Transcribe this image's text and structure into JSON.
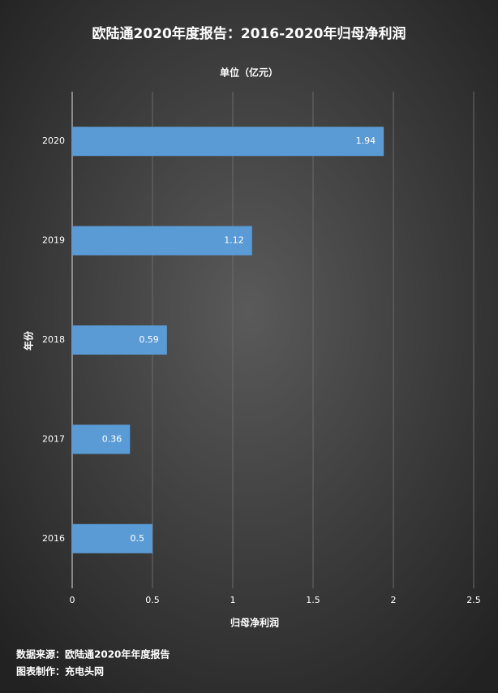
{
  "chart_data": {
    "type": "hbar",
    "title": "欧陆通2020年度报告：2016-2020年归母净利润",
    "subtitle": "单位（亿元）",
    "x_label": "归母净利润",
    "y_label": "年份",
    "categories": [
      "2020",
      "2019",
      "2018",
      "2017",
      "2016"
    ],
    "values": [
      1.94,
      1.12,
      0.59,
      0.36,
      0.5
    ],
    "color": "#5b9bd5",
    "xlim": [
      0,
      2.5
    ],
    "xticks": [
      0,
      0.5,
      1,
      1.5,
      2,
      2.5
    ],
    "grid": true,
    "notes": [
      "数据来源：欧陆通2020年年度报告",
      "图表制作：充电头网"
    ]
  }
}
